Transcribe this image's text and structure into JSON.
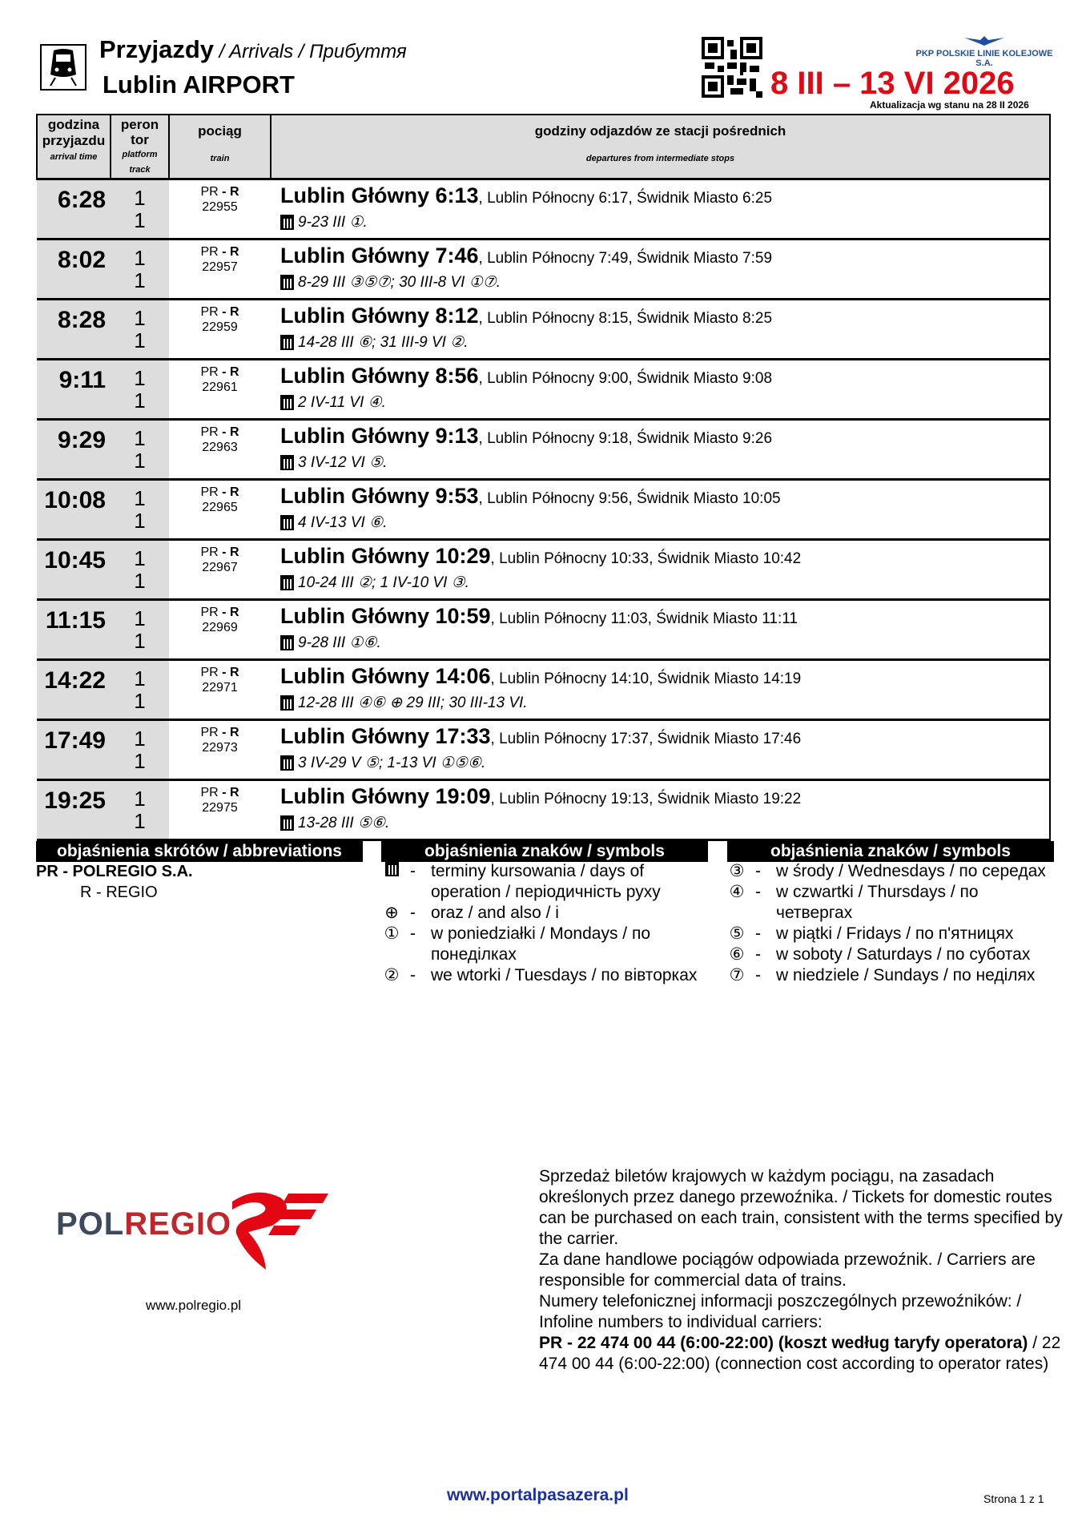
{
  "header": {
    "title": "Przyjazdy",
    "title_translations": " / Arrivals / Прибуття",
    "station": "Lublin AIRPORT",
    "operator_logo": "PKP POLSKIE LINIE KOLEJOWE S.A.",
    "validity": "8 III – 13 VI 2026",
    "update": "Aktualizacja wg stanu na 28 II 2026"
  },
  "columns": {
    "time": "godzina przyjazdu",
    "time_en": "arrival time",
    "platform": "peron tor",
    "platform_en": "platform track",
    "train": "pociąg",
    "train_en": "train",
    "stops": "godziny odjazdów ze stacji pośrednich",
    "stops_en": "departures from intermediate stops"
  },
  "rows": [
    {
      "time": "6:28",
      "platform": "1",
      "track": "1",
      "operator": "PR",
      "category": "R",
      "number": "22955",
      "main": "Lublin Główny 6:13",
      "rest": ", Lublin Północny 6:17, Świdnik Miasto 6:25",
      "days": "9-23 III ①."
    },
    {
      "time": "8:02",
      "platform": "1",
      "track": "1",
      "operator": "PR",
      "category": "R",
      "number": "22957",
      "main": "Lublin Główny 7:46",
      "rest": ", Lublin Północny 7:49, Świdnik Miasto 7:59",
      "days": "8-29 III ③⑤⑦; 30 III-8 VI ①⑦."
    },
    {
      "time": "8:28",
      "platform": "1",
      "track": "1",
      "operator": "PR",
      "category": "R",
      "number": "22959",
      "main": "Lublin Główny 8:12",
      "rest": ", Lublin Północny 8:15, Świdnik Miasto 8:25",
      "days": "14-28 III ⑥; 31 III-9 VI ②."
    },
    {
      "time": "9:11",
      "platform": "1",
      "track": "1",
      "operator": "PR",
      "category": "R",
      "number": "22961",
      "main": "Lublin Główny 8:56",
      "rest": ", Lublin Północny 9:00, Świdnik Miasto 9:08",
      "days": "2 IV-11 VI ④."
    },
    {
      "time": "9:29",
      "platform": "1",
      "track": "1",
      "operator": "PR",
      "category": "R",
      "number": "22963",
      "main": "Lublin Główny 9:13",
      "rest": ", Lublin Północny 9:18, Świdnik Miasto 9:26",
      "days": "3 IV-12 VI ⑤."
    },
    {
      "time": "10:08",
      "platform": "1",
      "track": "1",
      "operator": "PR",
      "category": "R",
      "number": "22965",
      "main": "Lublin Główny 9:53",
      "rest": ", Lublin Północny 9:56, Świdnik Miasto 10:05",
      "days": "4 IV-13 VI ⑥."
    },
    {
      "time": "10:45",
      "platform": "1",
      "track": "1",
      "operator": "PR",
      "category": "R",
      "number": "22967",
      "main": "Lublin Główny 10:29",
      "rest": ", Lublin Północny 10:33, Świdnik Miasto 10:42",
      "days": "10-24 III ②; 1 IV-10 VI ③."
    },
    {
      "time": "11:15",
      "platform": "1",
      "track": "1",
      "operator": "PR",
      "category": "R",
      "number": "22969",
      "main": "Lublin Główny 10:59",
      "rest": ", Lublin Północny 11:03, Świdnik Miasto 11:11",
      "days": "9-28 III ①⑥."
    },
    {
      "time": "14:22",
      "platform": "1",
      "track": "1",
      "operator": "PR",
      "category": "R",
      "number": "22971",
      "main": "Lublin Główny 14:06",
      "rest": ", Lublin Północny 14:10, Świdnik Miasto 14:19",
      "days": "12-28 III ④⑥ ⊕ 29 III; 30 III-13 VI."
    },
    {
      "time": "17:49",
      "platform": "1",
      "track": "1",
      "operator": "PR",
      "category": "R",
      "number": "22973",
      "main": "Lublin Główny 17:33",
      "rest": ", Lublin Północny 17:37, Świdnik Miasto 17:46",
      "days": "3 IV-29 V ⑤; 1-13 VI ①⑤⑥."
    },
    {
      "time": "19:25",
      "platform": "1",
      "track": "1",
      "operator": "PR",
      "category": "R",
      "number": "22975",
      "main": "Lublin Główny 19:09",
      "rest": ", Lublin Północny 19:13, Świdnik Miasto 19:22",
      "days": "13-28 III ⑤⑥."
    }
  ],
  "legend": {
    "abbr_title": "objaśnienia skrótów / abbreviations",
    "abbr": [
      "PR - POLREGIO S.A.",
      "R - REGIO"
    ],
    "symbols_title": "objaśnienia znaków / symbols",
    "symbols_left": [
      {
        "sym": "calendar",
        "text": "terminy kursowania / days of operation / періодичність руху"
      },
      {
        "sym": "⊕",
        "text": "oraz / and also / і"
      },
      {
        "sym": "①",
        "text": "w poniedziałki / Mondays / по понеділках"
      },
      {
        "sym": "②",
        "text": "we wtorki / Tuesdays / по вівторках"
      }
    ],
    "symbols_right": [
      {
        "sym": "③",
        "text": "w środy / Wednesdays / по середах"
      },
      {
        "sym": "④",
        "text": "w czwartki / Thursdays / по четвергах"
      },
      {
        "sym": "⑤",
        "text": "w piątki / Fridays / по п'ятницях"
      },
      {
        "sym": "⑥",
        "text": "w soboty / Saturdays / по суботах"
      },
      {
        "sym": "⑦",
        "text": "w niedziele / Sundays / по неділях"
      }
    ]
  },
  "footer": {
    "logo": "POLREGIO",
    "logo_url": "www.polregio.pl",
    "p1": "Sprzedaż biletów krajowych w każdym pociągu, na zasadach określonych przez danego przewoźnika. / Tickets for domestic routes can be purchased on each train, consistent with the terms specified by the carrier.",
    "p2": "Za dane handlowe pociągów odpowiada przewoźnik. / Carriers are responsible for commercial data of trains.",
    "p3": "Numery telefonicznej informacji poszczególnych przewoźników: / Infoline numbers to individual carriers:",
    "p4_bold": "PR - 22 474 00 44 (6:00-22:00) (koszt według taryfy operatora)",
    "p4_rest": " / 22 474 00 44 (6:00-22:00) (connection cost according to operator rates)",
    "portal": "www.portalpasazera.pl",
    "page": "Strona 1 z 1"
  },
  "colors": {
    "validity": "#e30613",
    "header_bg": "#dddddd",
    "portal": "#1a2fa0",
    "logo_red": "#c0272d"
  }
}
